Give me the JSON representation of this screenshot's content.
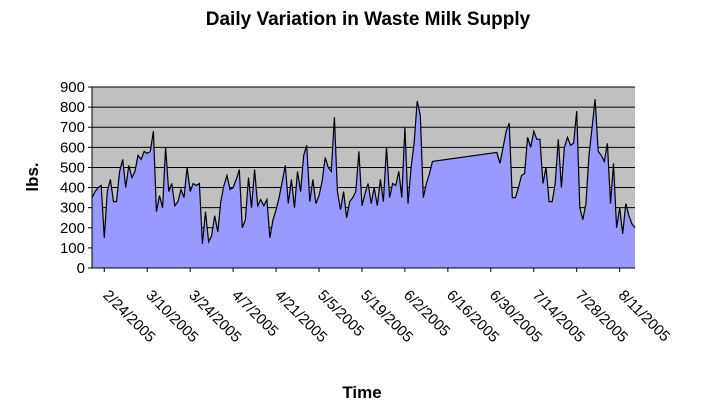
{
  "chart_data": {
    "type": "area",
    "title": "Daily Variation in Waste Milk Supply",
    "x_label": "Time",
    "y_label": "lbs.",
    "x": [
      "2/20/2005",
      "2/21/2005",
      "2/22/2005",
      "2/23/2005",
      "2/24/2005",
      "2/25/2005",
      "2/26/2005",
      "2/27/2005",
      "2/28/2005",
      "3/1/2005",
      "3/2/2005",
      "3/3/2005",
      "3/4/2005",
      "3/5/2005",
      "3/6/2005",
      "3/7/2005",
      "3/8/2005",
      "3/9/2005",
      "3/10/2005",
      "3/11/2005",
      "3/12/2005",
      "3/13/2005",
      "3/14/2005",
      "3/15/2005",
      "3/16/2005",
      "3/17/2005",
      "3/18/2005",
      "3/19/2005",
      "3/20/2005",
      "3/21/2005",
      "3/22/2005",
      "3/23/2005",
      "3/24/2005",
      "3/25/2005",
      "3/26/2005",
      "3/27/2005",
      "3/28/2005",
      "3/29/2005",
      "3/30/2005",
      "3/31/2005",
      "4/1/2005",
      "4/2/2005",
      "4/3/2005",
      "4/4/2005",
      "4/5/2005",
      "4/6/2005",
      "4/7/2005",
      "4/8/2005",
      "4/9/2005",
      "4/10/2005",
      "4/11/2005",
      "4/12/2005",
      "4/13/2005",
      "4/14/2005",
      "4/15/2005",
      "4/16/2005",
      "4/17/2005",
      "4/18/2005",
      "4/19/2005",
      "4/20/2005",
      "4/21/2005",
      "4/22/2005",
      "4/23/2005",
      "4/24/2005",
      "4/25/2005",
      "4/26/2005",
      "4/27/2005",
      "4/28/2005",
      "4/29/2005",
      "4/30/2005",
      "5/1/2005",
      "5/2/2005",
      "5/3/2005",
      "5/4/2005",
      "5/5/2005",
      "5/6/2005",
      "5/7/2005",
      "5/8/2005",
      "5/9/2005",
      "5/10/2005",
      "5/11/2005",
      "5/12/2005",
      "5/13/2005",
      "5/14/2005",
      "5/15/2005",
      "5/16/2005",
      "5/17/2005",
      "5/18/2005",
      "5/19/2005",
      "5/20/2005",
      "5/21/2005",
      "5/22/2005",
      "5/23/2005",
      "5/24/2005",
      "5/25/2005",
      "5/26/2005",
      "5/27/2005",
      "5/28/2005",
      "5/29/2005",
      "5/30/2005",
      "5/31/2005",
      "6/1/2005",
      "6/2/2005",
      "6/3/2005",
      "6/4/2005",
      "6/5/2005",
      "6/6/2005",
      "6/7/2005",
      "6/8/2005",
      "6/9/2005",
      "6/10/2005",
      "6/11/2005",
      "7/2/2005",
      "7/3/2005",
      "7/4/2005",
      "7/5/2005",
      "7/6/2005",
      "7/7/2005",
      "7/8/2005",
      "7/9/2005",
      "7/10/2005",
      "7/11/2005",
      "7/12/2005",
      "7/13/2005",
      "7/14/2005",
      "7/15/2005",
      "7/16/2005",
      "7/17/2005",
      "7/18/2005",
      "7/19/2005",
      "7/20/2005",
      "7/21/2005",
      "7/22/2005",
      "7/23/2005",
      "7/24/2005",
      "7/25/2005",
      "7/26/2005",
      "7/27/2005",
      "7/28/2005",
      "7/29/2005",
      "7/30/2005",
      "7/31/2005",
      "8/1/2005",
      "8/2/2005",
      "8/3/2005",
      "8/4/2005",
      "8/5/2005",
      "8/6/2005",
      "8/7/2005",
      "8/8/2005",
      "8/9/2005",
      "8/10/2005",
      "8/11/2005",
      "8/12/2005",
      "8/13/2005",
      "8/14/2005",
      "8/15/2005",
      "8/16/2005"
    ],
    "values": [
      350,
      380,
      400,
      410,
      150,
      380,
      440,
      330,
      330,
      480,
      540,
      400,
      510,
      450,
      480,
      560,
      540,
      580,
      570,
      580,
      680,
      280,
      360,
      300,
      600,
      380,
      420,
      310,
      330,
      390,
      350,
      500,
      380,
      420,
      410,
      420,
      120,
      280,
      130,
      160,
      260,
      180,
      330,
      410,
      460,
      390,
      400,
      440,
      490,
      200,
      240,
      450,
      300,
      490,
      310,
      340,
      310,
      340,
      150,
      240,
      290,
      350,
      430,
      510,
      320,
      440,
      300,
      480,
      380,
      560,
      610,
      330,
      440,
      320,
      360,
      430,
      550,
      500,
      480,
      750,
      380,
      290,
      380,
      250,
      330,
      350,
      380,
      580,
      310,
      370,
      420,
      320,
      400,
      310,
      440,
      330,
      600,
      350,
      420,
      410,
      480,
      350,
      700,
      320,
      500,
      620,
      830,
      760,
      350,
      420,
      470,
      530,
      575,
      520,
      600,
      680,
      720,
      350,
      350,
      400,
      460,
      470,
      650,
      600,
      680,
      640,
      640,
      420,
      500,
      330,
      330,
      420,
      640,
      400,
      600,
      650,
      610,
      620,
      780,
      300,
      240,
      320,
      560,
      700,
      840,
      580,
      560,
      530,
      620,
      320,
      520,
      200,
      300,
      170,
      320,
      260,
      220,
      200
    ],
    "color": "#9999ff",
    "line_color": "#000000",
    "plot_background": "#c0c0c0",
    "xlim": [
      "2/20/2005",
      "8/16/2005"
    ],
    "xticks": [
      "2/24/2005",
      "3/10/2005",
      "3/24/2005",
      "4/7/2005",
      "4/21/2005",
      "5/5/2005",
      "5/19/2005",
      "6/2/2005",
      "6/16/2005",
      "6/30/2005",
      "7/14/2005",
      "7/28/2005",
      "8/11/2005"
    ],
    "ylim": [
      0,
      900
    ],
    "yticks": [
      0,
      100,
      200,
      300,
      400,
      500,
      600,
      700,
      800,
      900
    ],
    "grid": true
  }
}
